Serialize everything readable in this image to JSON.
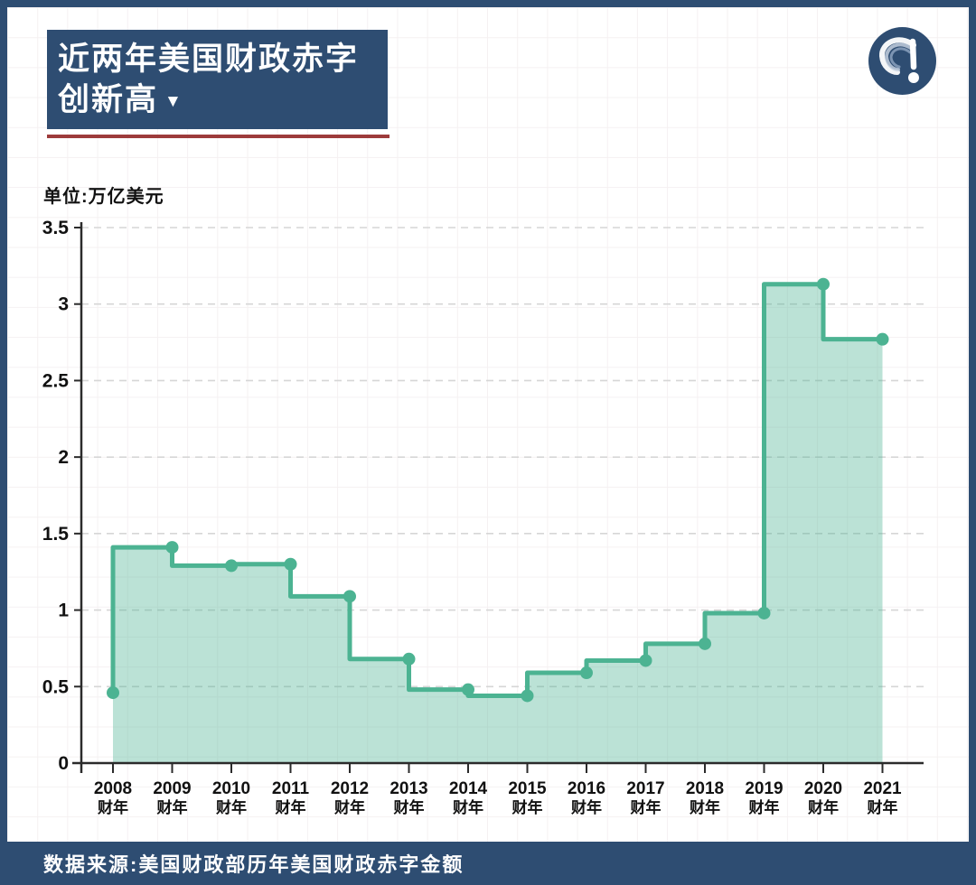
{
  "header": {
    "title_line1": "近两年美国财政赤字",
    "title_line2": "创新高",
    "title_arrow": "▼"
  },
  "unit_label": "单位:万亿美元",
  "footer": {
    "source": "数据来源:美国财政部历年美国财政赤字金额"
  },
  "colors": {
    "navy": "#2E4D72",
    "rule_red": "#9D3B3B",
    "line_green": "#4CB392",
    "fill_green": "rgba(76,179,146,0.38)",
    "dashed_grid": "#D6D6D6",
    "axis": "#2B2B2B",
    "label_text": "#111111"
  },
  "chart_data": {
    "type": "area",
    "step_style": "start",
    "title": "近两年美国财政赤字创新高",
    "unit": "万亿美元",
    "categories": [
      "2008",
      "2009",
      "2010",
      "2011",
      "2012",
      "2013",
      "2014",
      "2015",
      "2016",
      "2017",
      "2018",
      "2019",
      "2020",
      "2021"
    ],
    "category_suffix": "财年",
    "values": [
      0.46,
      1.41,
      1.29,
      1.3,
      1.09,
      0.68,
      0.48,
      0.44,
      0.59,
      0.67,
      0.78,
      0.98,
      3.13,
      2.77
    ],
    "xlabel": "财年",
    "ylabel": "万亿美元",
    "ylim": [
      0,
      3.5
    ],
    "yticks": [
      0,
      0.5,
      1,
      1.5,
      2,
      2.5,
      3,
      3.5
    ],
    "grid": "horizontal-dashed",
    "legend": "none",
    "markers": "circle",
    "source": "数据来源:美国财政部历年美国财政赤字金额"
  }
}
